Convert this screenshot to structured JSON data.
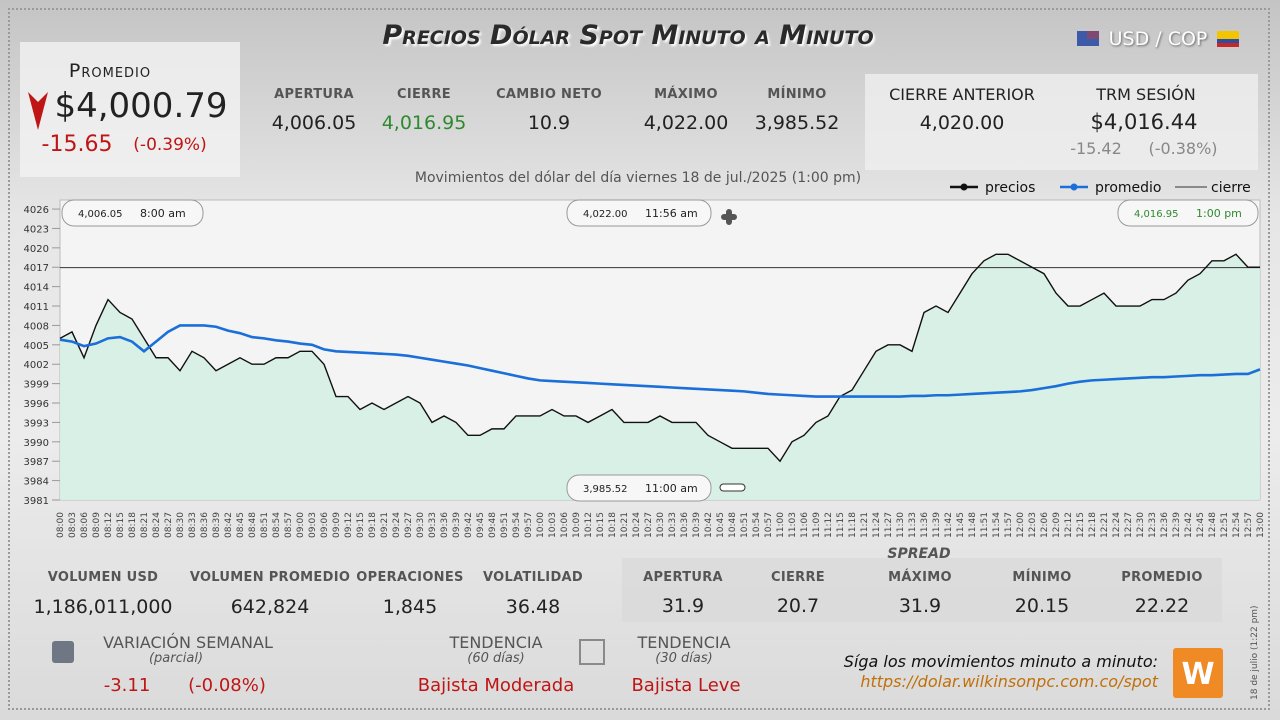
{
  "title": "Precios Dólar Spot Minuto a Minuto",
  "pair": "USD / COP",
  "promedio": {
    "label": "Promedio",
    "value": "$4,000.79",
    "change": "-15.65",
    "change_pct": "(-0.39%)"
  },
  "stats": [
    {
      "label": "APERTURA",
      "value": "4,006.05"
    },
    {
      "label": "CIERRE",
      "value": "4,016.95"
    },
    {
      "label": "CAMBIO NETO",
      "value": "10.9"
    },
    {
      "label": "MÁXIMO",
      "value": "4,022.00"
    },
    {
      "label": "MÍNIMO",
      "value": "3,985.52"
    }
  ],
  "cierre_anterior": {
    "label": "CIERRE ANTERIOR",
    "value": "4,020.00"
  },
  "trm": {
    "label": "TRM SESIÓN",
    "value": "$4,016.44",
    "change": "-15.42",
    "change_pct": "(-0.38%)"
  },
  "chart_data": {
    "type": "line",
    "subtitle": "Movimientos del dólar del día viernes 18 de jul./2025 (1:00 pm)",
    "categories": [
      "08:00",
      "08:03",
      "08:06",
      "08:09",
      "08:12",
      "08:15",
      "08:18",
      "08:21",
      "08:24",
      "08:27",
      "08:30",
      "08:33",
      "08:36",
      "08:39",
      "08:42",
      "08:45",
      "08:48",
      "08:51",
      "08:54",
      "08:57",
      "09:00",
      "09:03",
      "09:06",
      "09:09",
      "09:12",
      "09:15",
      "09:18",
      "09:21",
      "09:24",
      "09:27",
      "09:30",
      "09:33",
      "09:36",
      "09:39",
      "09:42",
      "09:45",
      "09:48",
      "09:51",
      "09:54",
      "09:57",
      "10:00",
      "10:03",
      "10:06",
      "10:09",
      "10:12",
      "10:15",
      "10:18",
      "10:21",
      "10:24",
      "10:27",
      "10:30",
      "10:33",
      "10:36",
      "10:39",
      "10:42",
      "10:45",
      "10:48",
      "10:51",
      "10:54",
      "10:57",
      "11:00",
      "11:03",
      "11:06",
      "11:09",
      "11:12",
      "11:15",
      "11:18",
      "11:21",
      "11:24",
      "11:27",
      "11:30",
      "11:33",
      "11:36",
      "11:39",
      "11:42",
      "11:45",
      "11:48",
      "11:51",
      "11:54",
      "11:57",
      "12:00",
      "12:03",
      "12:06",
      "12:09",
      "12:12",
      "12:15",
      "12:18",
      "12:21",
      "12:24",
      "12:27",
      "12:30",
      "12:33",
      "12:36",
      "12:39",
      "12:42",
      "12:45",
      "12:48",
      "12:51",
      "12:54",
      "12:57",
      "13:00"
    ],
    "series": [
      {
        "name": "precios",
        "color": "#111111",
        "values": [
          4006,
          4007,
          4003,
          4008,
          4012,
          4010,
          4009,
          4006,
          4003,
          4003,
          4001,
          4004,
          4003,
          4001,
          4002,
          4003,
          4002,
          4002,
          4003,
          4003,
          4004,
          4004,
          4002,
          3997,
          3997,
          3995,
          3996,
          3995,
          3996,
          3997,
          3996,
          3993,
          3994,
          3993,
          3991,
          3991,
          3992,
          3992,
          3994,
          3994,
          3994,
          3995,
          3994,
          3994,
          3993,
          3994,
          3995,
          3993,
          3993,
          3993,
          3994,
          3993,
          3993,
          3993,
          3991,
          3990,
          3989,
          3989,
          3989,
          3989,
          3987,
          3990,
          3991,
          3993,
          3994,
          3997,
          3998,
          4001,
          4004,
          4005,
          4005,
          4004,
          4010,
          4011,
          4010,
          4013,
          4016,
          4018,
          4019,
          4019,
          4018,
          4017,
          4016,
          4013,
          4011,
          4011,
          4012,
          4013,
          4011,
          4011,
          4011,
          4012,
          4012,
          4013,
          4015,
          4016,
          4018,
          4018,
          4019,
          4017,
          4017
        ]
      },
      {
        "name": "promedio",
        "color": "#1a6fd8",
        "values": [
          4005.8,
          4005.5,
          4004.8,
          4005.2,
          4006,
          4006.2,
          4005.5,
          4004,
          4005.5,
          4007,
          4008,
          4008,
          4008,
          4007.8,
          4007.2,
          4006.8,
          4006.2,
          4006,
          4005.7,
          4005.5,
          4005.2,
          4005,
          4004.3,
          4004,
          4003.9,
          4003.8,
          4003.7,
          4003.6,
          4003.5,
          4003.3,
          4003,
          4002.7,
          4002.4,
          4002.1,
          4001.8,
          4001.4,
          4001,
          4000.6,
          4000.2,
          3999.8,
          3999.5,
          3999.4,
          3999.3,
          3999.2,
          3999.1,
          3999,
          3998.9,
          3998.8,
          3998.7,
          3998.6,
          3998.5,
          3998.4,
          3998.3,
          3998.2,
          3998.1,
          3998,
          3997.9,
          3997.8,
          3997.6,
          3997.4,
          3997.3,
          3997.2,
          3997.1,
          3997,
          3997,
          3997,
          3997,
          3997,
          3997,
          3997,
          3997,
          3997.1,
          3997.1,
          3997.2,
          3997.2,
          3997.3,
          3997.4,
          3997.5,
          3997.6,
          3997.7,
          3997.8,
          3998,
          3998.3,
          3998.6,
          3999,
          3999.3,
          3999.5,
          3999.6,
          3999.7,
          3999.8,
          3999.9,
          4000,
          4000,
          4000.1,
          4000.2,
          4000.3,
          4000.3,
          4000.4,
          4000.5,
          4000.5,
          4001.2
        ]
      }
    ],
    "cierre": {
      "name": "cierre",
      "value": 4016.95,
      "color": "#333333"
    },
    "area_color": "#d6efe6",
    "ylim": [
      3981,
      4027.4
    ],
    "yticks": [
      3981,
      3984,
      3987,
      3990,
      3993,
      3996,
      3999,
      4002,
      4005,
      4008,
      4011,
      4014,
      4017,
      4020,
      4023,
      4026
    ],
    "annotations": [
      {
        "price": "4,006.05",
        "time": "8:00 am"
      },
      {
        "price": "4,022.00",
        "time": "11:56 am"
      },
      {
        "price": "3,985.52",
        "time": "11:00 am"
      },
      {
        "price": "4,016.95",
        "time": "1:00 pm"
      }
    ]
  },
  "volume_stats": [
    {
      "label": "VOLUMEN USD",
      "value": "1,186,011,000"
    },
    {
      "label": "VOLUMEN PROMEDIO",
      "value": "642,824"
    },
    {
      "label": "OPERACIONES",
      "value": "1,845"
    },
    {
      "label": "VOLATILIDAD",
      "value": "36.48"
    }
  ],
  "spread": {
    "title": "SPREAD",
    "items": [
      {
        "label": "APERTURA",
        "value": "31.9"
      },
      {
        "label": "CIERRE",
        "value": "20.7"
      },
      {
        "label": "MÁXIMO",
        "value": "31.9"
      },
      {
        "label": "MÍNIMO",
        "value": "20.15"
      },
      {
        "label": "PROMEDIO",
        "value": "22.22"
      }
    ]
  },
  "variacion": {
    "label": "VARIACIÓN SEMANAL",
    "note": "(parcial)",
    "value": "-3.11",
    "pct": "(-0.08%)"
  },
  "tendencias": [
    {
      "label": "TENDENCIA",
      "note": "(60 días)",
      "value": "Bajista Moderada"
    },
    {
      "label": "TENDENCIA",
      "note": "(30 días)",
      "value": "Bajista Leve"
    }
  ],
  "footer": {
    "text": "Síga los movimientos minuto a minuto:",
    "url": "https://dolar.wilkinsonpc.com.co/spot",
    "stamp": "18 de julio (1:22 pm)"
  }
}
